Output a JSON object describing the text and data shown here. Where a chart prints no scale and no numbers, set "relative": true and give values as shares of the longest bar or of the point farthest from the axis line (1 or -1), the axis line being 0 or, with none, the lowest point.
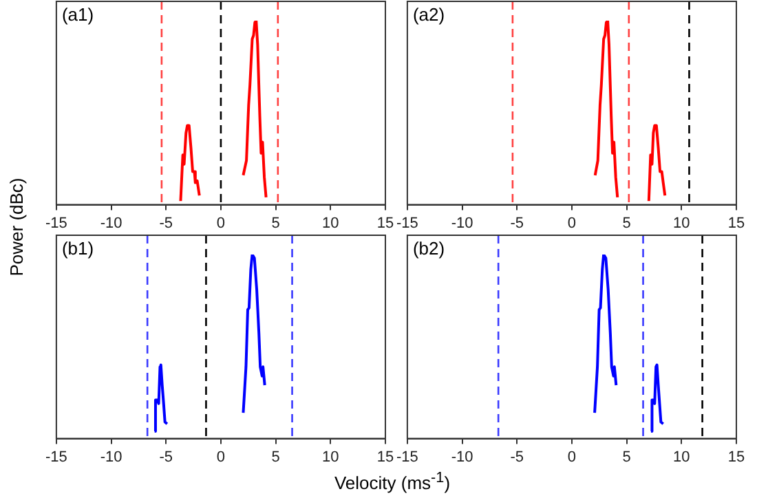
{
  "chart_data": [
    {
      "type": "line",
      "relative": true,
      "ylabel": "Power (dBc)",
      "annotations": [
        "(a1)"
      ],
      "xlim": [
        -15,
        15
      ],
      "xticks": [
        -15,
        -10,
        -5,
        0,
        5,
        10,
        15
      ],
      "grid": false,
      "legend": false,
      "marker": "none",
      "line_style": "solid",
      "series": [
        {
          "color": "#ff0000",
          "x": [
            -3.67,
            -3.47,
            -3.35,
            -3.18,
            -3.06,
            -2.9,
            -2.73,
            -2.57,
            -2.41,
            -2.33,
            -2.16,
            -1.96
          ],
          "values": [
            0.02,
            0.27,
            0.22,
            0.39,
            0.43,
            0.43,
            0.31,
            0.18,
            0.18,
            0.12,
            0.13,
            0.05
          ]
        },
        {
          "color": "#ff0000",
          "x": [
            2.04,
            2.33,
            2.53,
            2.65,
            2.86,
            2.98,
            3.1,
            3.22,
            3.35,
            3.55,
            3.67,
            3.8,
            3.96,
            4.12
          ],
          "values": [
            0.16,
            0.24,
            0.54,
            0.65,
            0.9,
            0.92,
            0.99,
            1,
            0.87,
            0.48,
            0.28,
            0.34,
            0.15,
            0.04
          ]
        }
      ],
      "ref_lines": [
        {
          "axis": "x",
          "value": -5.4,
          "color": "#ff4040",
          "line_style": "dashed"
        },
        {
          "axis": "x",
          "value": 0,
          "color": "#000000",
          "line_style": "dashed"
        },
        {
          "axis": "x",
          "value": 5.2,
          "color": "#ff4040",
          "line_style": "dashed"
        }
      ]
    },
    {
      "type": "line",
      "relative": true,
      "annotations": [
        "(a2)"
      ],
      "xlim": [
        -15,
        15
      ],
      "xticks": [
        -15,
        -10,
        -5,
        0,
        5,
        10,
        15
      ],
      "grid": false,
      "legend": false,
      "marker": "none",
      "line_style": "solid",
      "series": [
        {
          "color": "#ff0000",
          "x": [
            2.12,
            2.37,
            2.57,
            2.69,
            2.9,
            3.02,
            3.14,
            3.27,
            3.39,
            3.59,
            3.71,
            3.84,
            4.0,
            4.16
          ],
          "values": [
            0.16,
            0.24,
            0.54,
            0.65,
            0.9,
            0.92,
            0.99,
            1,
            0.87,
            0.48,
            0.28,
            0.34,
            0.15,
            0.04
          ]
        },
        {
          "color": "#ff0000",
          "x": [
            7.02,
            7.18,
            7.31,
            7.43,
            7.55,
            7.71,
            7.88,
            8.04,
            8.2,
            8.33,
            8.49
          ],
          "values": [
            0.02,
            0.27,
            0.22,
            0.39,
            0.43,
            0.43,
            0.31,
            0.18,
            0.18,
            0.12,
            0.05
          ]
        }
      ],
      "ref_lines": [
        {
          "axis": "x",
          "value": -5.4,
          "color": "#ff4040",
          "line_style": "dashed"
        },
        {
          "axis": "x",
          "value": 5.2,
          "color": "#ff4040",
          "line_style": "dashed"
        },
        {
          "axis": "x",
          "value": 10.7,
          "color": "#000000",
          "line_style": "dashed"
        }
      ]
    },
    {
      "type": "line",
      "relative": true,
      "xlabel": "Velocity (ms$^{-1}$)",
      "annotations": [
        "(b1)"
      ],
      "xlim": [
        -15,
        15
      ],
      "xticks": [
        -15,
        -10,
        -5,
        0,
        5,
        10,
        15
      ],
      "grid": false,
      "legend": false,
      "marker": "none",
      "line_style": "solid",
      "series": [
        {
          "color": "#0000ff",
          "x": [
            -6.04,
            -5.96,
            -5.8,
            -5.67,
            -5.55,
            -5.47,
            -5.35,
            -5.22,
            -5.1,
            -4.9
          ],
          "values": [
            0.04,
            0.21,
            0.21,
            0.19,
            0.39,
            0.4,
            0.29,
            0.19,
            0.09,
            0.08
          ]
        },
        {
          "color": "#0000ff",
          "x": [
            2.04,
            2.29,
            2.45,
            2.57,
            2.73,
            2.86,
            3.06,
            3.27,
            3.47,
            3.59,
            3.76,
            3.84,
            4.0
          ],
          "values": [
            0.14,
            0.39,
            0.7,
            0.71,
            0.92,
            1,
            0.98,
            0.81,
            0.57,
            0.39,
            0.34,
            0.39,
            0.29
          ]
        }
      ],
      "ref_lines": [
        {
          "axis": "x",
          "value": -6.7,
          "color": "#3a3aff",
          "line_style": "dashed"
        },
        {
          "axis": "x",
          "value": -1.35,
          "color": "#000000",
          "line_style": "dashed"
        },
        {
          "axis": "x",
          "value": 6.5,
          "color": "#3a3aff",
          "line_style": "dashed"
        }
      ]
    },
    {
      "type": "line",
      "relative": true,
      "annotations": [
        "(b2)"
      ],
      "xlim": [
        -15,
        15
      ],
      "xticks": [
        -15,
        -10,
        -5,
        0,
        5,
        10,
        15
      ],
      "grid": false,
      "legend": false,
      "marker": "none",
      "line_style": "solid",
      "series": [
        {
          "color": "#0000ff",
          "x": [
            2.08,
            2.33,
            2.49,
            2.61,
            2.78,
            2.9,
            3.1,
            3.31,
            3.51,
            3.63,
            3.8,
            3.88,
            4.04
          ],
          "values": [
            0.14,
            0.39,
            0.7,
            0.71,
            0.92,
            1,
            0.98,
            0.81,
            0.57,
            0.39,
            0.34,
            0.39,
            0.29
          ]
        },
        {
          "color": "#0000ff",
          "x": [
            7.22,
            7.31,
            7.47,
            7.55,
            7.67,
            7.76,
            7.88,
            8.0,
            8.12,
            8.33
          ],
          "values": [
            0.04,
            0.21,
            0.21,
            0.19,
            0.39,
            0.4,
            0.29,
            0.19,
            0.09,
            0.08
          ]
        }
      ],
      "ref_lines": [
        {
          "axis": "x",
          "value": -6.7,
          "color": "#3a3aff",
          "line_style": "dashed"
        },
        {
          "axis": "x",
          "value": 6.5,
          "color": "#3a3aff",
          "line_style": "dashed"
        },
        {
          "axis": "x",
          "value": 11.9,
          "color": "#000000",
          "line_style": "dashed"
        }
      ]
    }
  ]
}
